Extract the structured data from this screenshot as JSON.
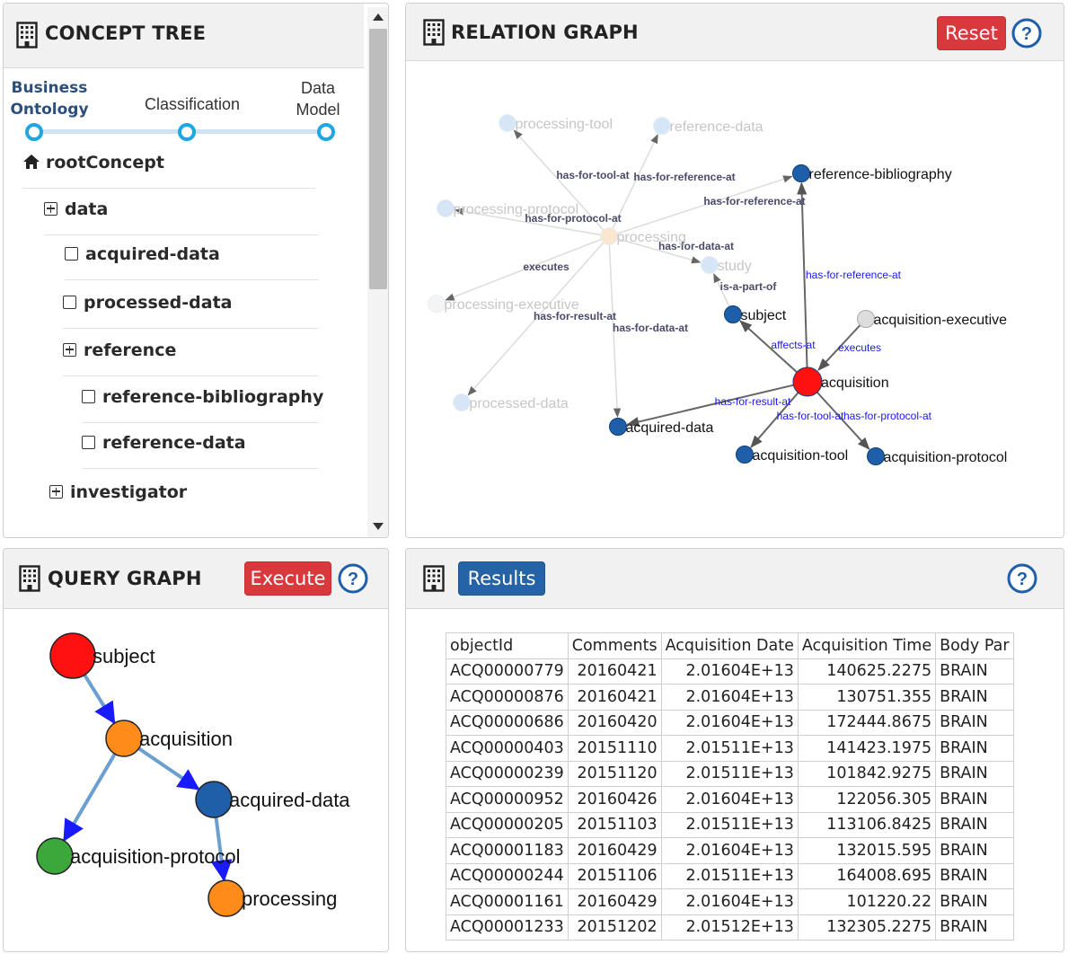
{
  "concept_tree": {
    "title": "CONCEPT TREE",
    "steps": [
      {
        "label": "Business\nOntology"
      },
      {
        "label": "Classification"
      },
      {
        "label": "Data\nModel"
      }
    ],
    "items": [
      {
        "label": "rootConcept",
        "icon": "home-icon"
      },
      {
        "label": "data",
        "icon": "plus-square-icon"
      },
      {
        "label": "acquired-data",
        "icon": "square-icon"
      },
      {
        "label": "processed-data",
        "icon": "square-icon"
      },
      {
        "label": "reference",
        "icon": "plus-square-icon"
      },
      {
        "label": "reference-bibliography",
        "icon": "square-icon"
      },
      {
        "label": "reference-data",
        "icon": "square-icon"
      },
      {
        "label": "investigator",
        "icon": "plus-square-icon"
      }
    ]
  },
  "relation_graph": {
    "title": "RELATION GRAPH",
    "reset_label": "Reset",
    "nodes": [
      {
        "id": "processing-tool",
        "label": "processing-tool",
        "color": "#d6e6f6",
        "faded": true
      },
      {
        "id": "reference-data",
        "label": "reference-data",
        "color": "#d6e6f6",
        "faded": true
      },
      {
        "id": "processing-protocol",
        "label": "processing-protocol",
        "color": "#d6e6f6",
        "faded": true
      },
      {
        "id": "processing",
        "label": "processing",
        "color": "#fbe6cf",
        "faded": true
      },
      {
        "id": "processing-executive",
        "label": "processing-executive",
        "color": "#f4f4f4",
        "faded": true
      },
      {
        "id": "processed-data",
        "label": "processed-data",
        "color": "#d6e6f6",
        "faded": true
      },
      {
        "id": "study",
        "label": "study",
        "color": "#d6e6f6",
        "faded": true
      },
      {
        "id": "reference-bibliography",
        "label": "reference-bibliography",
        "color": "#1f5ea8",
        "faded": false
      },
      {
        "id": "subject",
        "label": "subject",
        "color": "#1f5ea8",
        "faded": false
      },
      {
        "id": "acquisition-executive",
        "label": "acquisition-executive",
        "color": "#dddddd",
        "faded": false
      },
      {
        "id": "acquisition",
        "label": "acquisition",
        "color": "#ff1111",
        "faded": false
      },
      {
        "id": "acquired-data",
        "label": "acquired-data",
        "color": "#1f5ea8",
        "faded": false
      },
      {
        "id": "acquisition-tool",
        "label": "acquisition-tool",
        "color": "#1f5ea8",
        "faded": false
      },
      {
        "id": "acquisition-protocol",
        "label": "acquisition-protocol",
        "color": "#1f5ea8",
        "faded": false
      }
    ],
    "edges": [
      {
        "from": "processing",
        "to": "processing-tool",
        "label": "has-for-tool-at",
        "faded": true
      },
      {
        "from": "processing",
        "to": "reference-data",
        "label": "has-for-reference-at",
        "faded": true
      },
      {
        "from": "processing",
        "to": "reference-bibliography",
        "label": "has-for-reference-at",
        "faded": true
      },
      {
        "from": "processing",
        "to": "processing-protocol",
        "label": "has-for-protocol-at",
        "faded": true
      },
      {
        "from": "processing",
        "to": "study",
        "label": "has-for-data-at",
        "faded": true
      },
      {
        "from": "processing",
        "to": "processing-executive",
        "label": "executes",
        "faded": true
      },
      {
        "from": "processing",
        "to": "processed-data",
        "label": "has-for-result-at",
        "faded": true
      },
      {
        "from": "processing",
        "to": "acquired-data",
        "label": "has-for-data-at",
        "faded": true
      },
      {
        "from": "subject",
        "to": "study",
        "label": "is-a-part-of",
        "faded": true
      },
      {
        "from": "acquisition",
        "to": "reference-bibliography",
        "label": "has-for-reference-at",
        "faded": false
      },
      {
        "from": "acquisition",
        "to": "subject",
        "label": "affects-at",
        "faded": false
      },
      {
        "from": "acquisition-executive",
        "to": "acquisition",
        "label": "executes",
        "faded": false
      },
      {
        "from": "acquisition",
        "to": "acquired-data",
        "label": "has-for-result-at",
        "faded": false
      },
      {
        "from": "acquisition",
        "to": "acquisition-tool",
        "label": "has-for-tool-at",
        "faded": false
      },
      {
        "from": "acquisition",
        "to": "acquisition-protocol",
        "label": "has-for-protocol-at",
        "faded": false
      }
    ]
  },
  "query_graph": {
    "title": "QUERY GRAPH",
    "execute_label": "Execute",
    "nodes": [
      {
        "id": "subject",
        "label": "subject",
        "color": "#ff1111"
      },
      {
        "id": "acquisition",
        "label": "acquisition",
        "color": "#ff8c1a"
      },
      {
        "id": "acquired-data",
        "label": "acquired-data",
        "color": "#1f5ea8"
      },
      {
        "id": "acquisition-protocol",
        "label": "acquisition-protocol",
        "color": "#3ca83c"
      },
      {
        "id": "processing",
        "label": "processing",
        "color": "#ff8c1a"
      }
    ],
    "edges": [
      {
        "from": "subject",
        "to": "acquisition"
      },
      {
        "from": "acquisition",
        "to": "acquired-data"
      },
      {
        "from": "acquisition",
        "to": "acquisition-protocol"
      },
      {
        "from": "acquired-data",
        "to": "processing"
      }
    ]
  },
  "results": {
    "button_label": "Results",
    "columns": [
      "objectId",
      "Comments",
      "Acquisition Date",
      "Acquisition Time",
      "Body Par"
    ],
    "rows": [
      [
        "ACQ00000779",
        "20160421",
        "2.01604E+13",
        "140625.2275",
        "BRAIN"
      ],
      [
        "ACQ00000876",
        "20160421",
        "2.01604E+13",
        "130751.355",
        "BRAIN"
      ],
      [
        "ACQ00000686",
        "20160420",
        "2.01604E+13",
        "172444.8675",
        "BRAIN"
      ],
      [
        "ACQ00000403",
        "20151110",
        "2.01511E+13",
        "141423.1975",
        "BRAIN"
      ],
      [
        "ACQ00000239",
        "20151120",
        "2.01511E+13",
        "101842.9275",
        "BRAIN"
      ],
      [
        "ACQ00000952",
        "20160426",
        "2.01604E+13",
        "122056.305",
        "BRAIN"
      ],
      [
        "ACQ00000205",
        "20151103",
        "2.01511E+13",
        "113106.8425",
        "BRAIN"
      ],
      [
        "ACQ00001183",
        "20160429",
        "2.01604E+13",
        "132015.595",
        "BRAIN"
      ],
      [
        "ACQ00000244",
        "20151106",
        "2.01511E+13",
        "164008.695",
        "BRAIN"
      ],
      [
        "ACQ00001161",
        "20160429",
        "2.01604E+13",
        "101220.22",
        "BRAIN"
      ],
      [
        "ACQ00001233",
        "20151202",
        "2.01512E+13",
        "132305.2275",
        "BRAIN"
      ]
    ]
  }
}
